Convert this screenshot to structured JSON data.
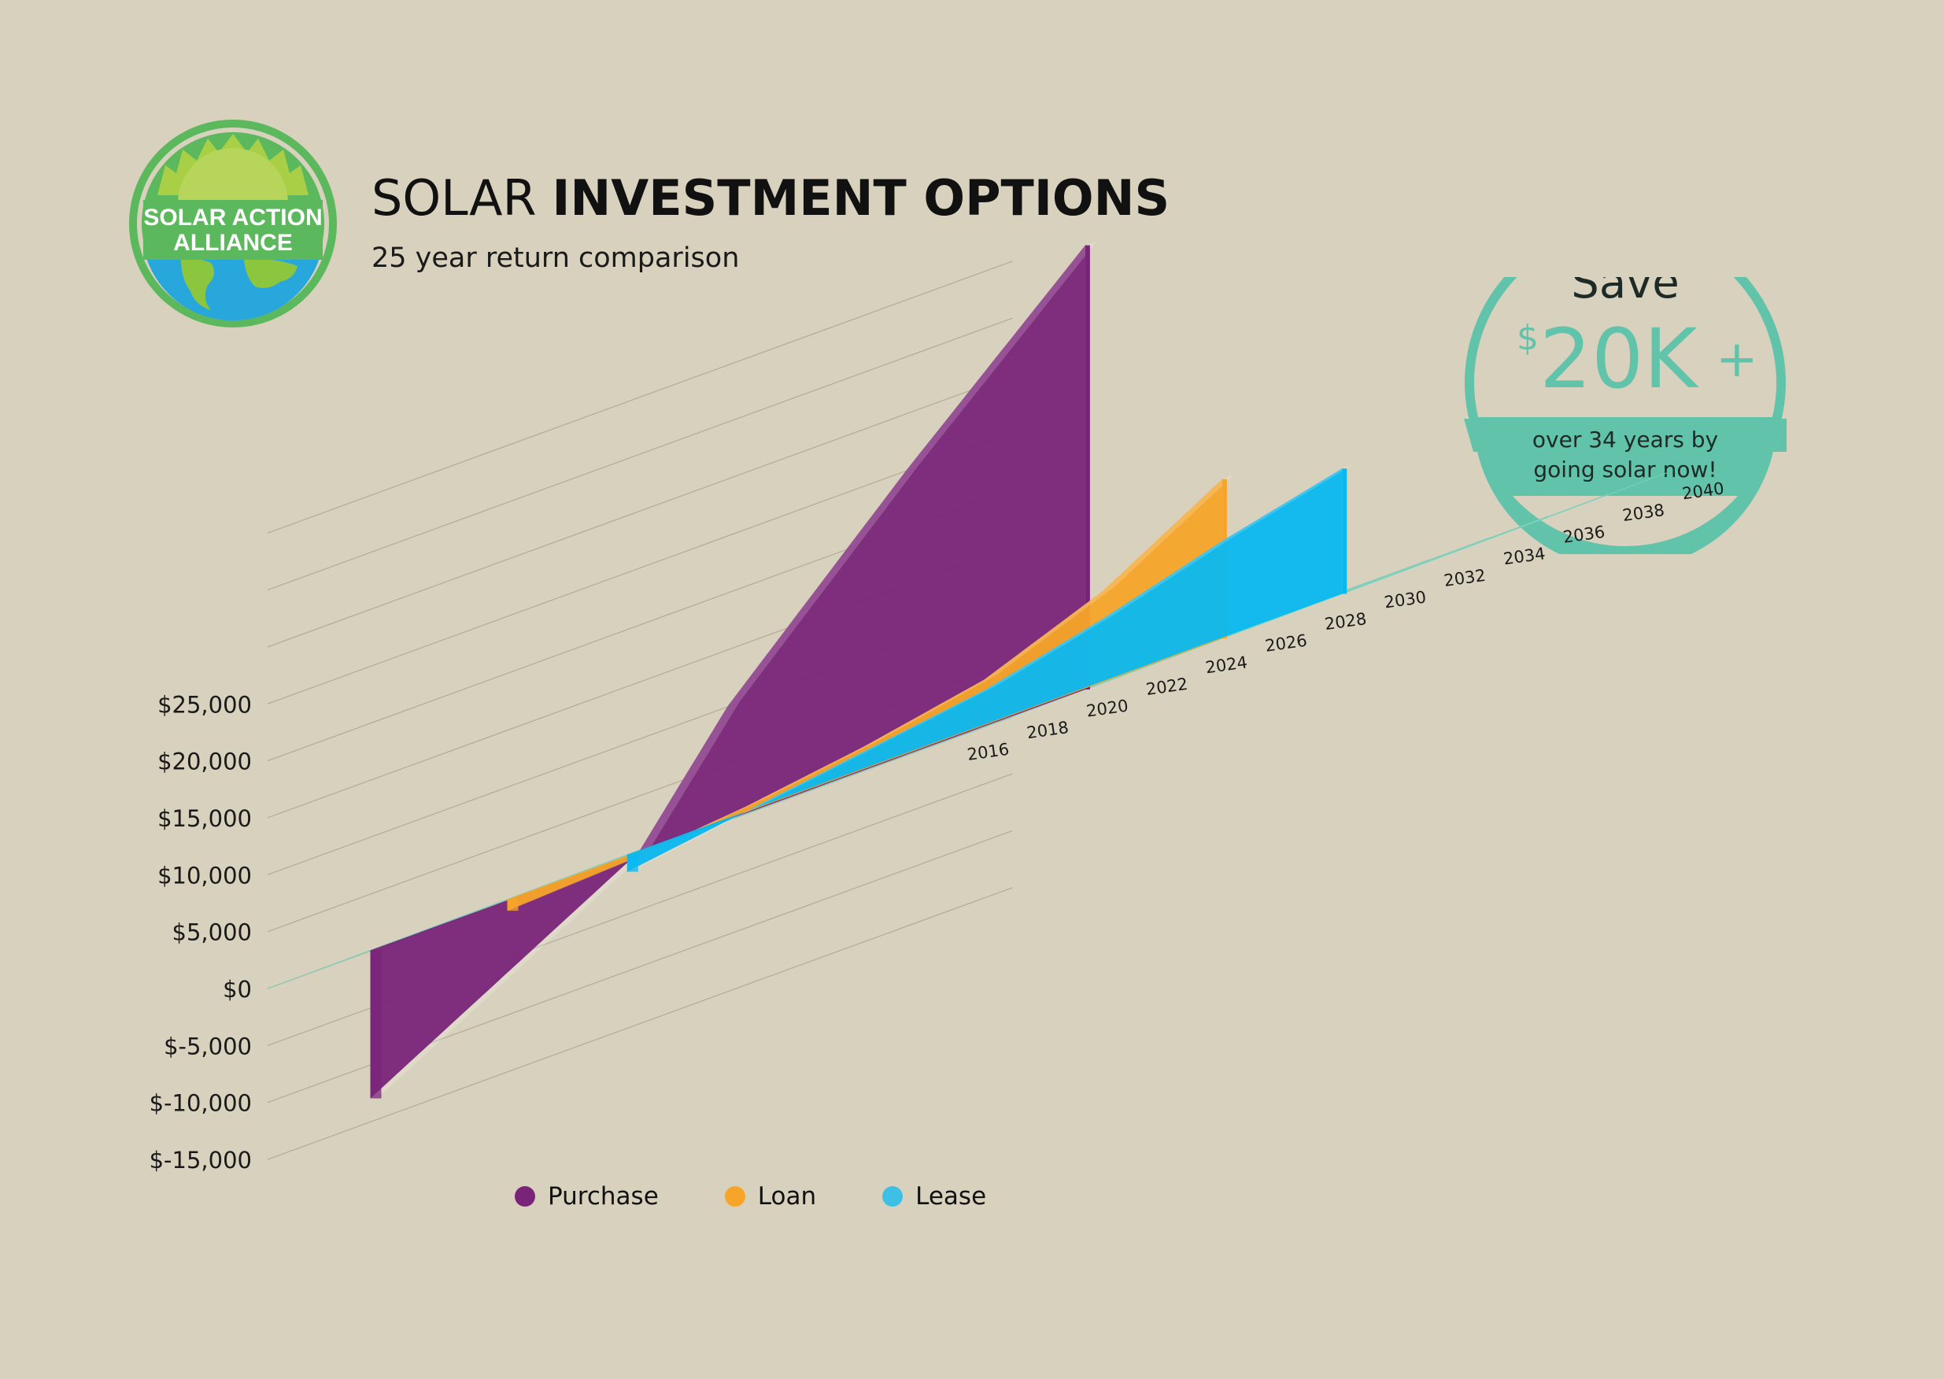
{
  "logo": {
    "line1": "SOLAR ACTION",
    "line2": "ALLIANCE"
  },
  "header": {
    "title_light": "SOLAR",
    "title_bold": "INVESTMENT OPTIONS",
    "subtitle": "25 year return comparison"
  },
  "badge": {
    "save": "Save",
    "currency": "$",
    "amount": "20K",
    "plus": "+",
    "line1": "over 34 years by",
    "line2": "going solar now!"
  },
  "colors": {
    "purchase": "#7a2479",
    "loan": "#f7a529",
    "lease": "#09b8f0",
    "plane": "#62c3ab",
    "badge": "#62c3ab",
    "logo_green": "#5cb85c"
  },
  "chart_data": {
    "type": "area",
    "title": "SOLAR INVESTMENT OPTIONS",
    "subtitle": "25 year return comparison",
    "y_tick_labels": [
      "$-15,000",
      "$-10,000",
      "$-5,000",
      "$0",
      "$5,000",
      "$10,000",
      "$15,000",
      "$20,000",
      "$25,000"
    ],
    "x_tick_labels": [
      "2016",
      "2018",
      "2020",
      "2022",
      "2024",
      "2026",
      "2028",
      "2030",
      "2032",
      "2034",
      "2036",
      "2038",
      "2040"
    ],
    "ylim": [
      -15000,
      25000
    ],
    "grid": true,
    "legend_position": "bottom",
    "series": [
      {
        "name": "Purchase",
        "color": "#7a2479",
        "x": [
          2016,
          2025,
          2028,
          2032,
          2034,
          2040
        ],
        "values": [
          -13000,
          0,
          10000,
          20000,
          25000,
          39000
        ]
      },
      {
        "name": "Loan",
        "color": "#f7a529",
        "x": [
          2016,
          2020,
          2024,
          2028,
          2032,
          2036,
          2040
        ],
        "values": [
          -1000,
          -500,
          500,
          2000,
          4000,
          8000,
          14000
        ]
      },
      {
        "name": "Lease",
        "color": "#09b8f0",
        "x": [
          2016,
          2020,
          2024,
          2028,
          2032,
          2036,
          2040
        ],
        "values": [
          -1500,
          0,
          1500,
          3000,
          5500,
          8500,
          11000
        ]
      }
    ]
  }
}
